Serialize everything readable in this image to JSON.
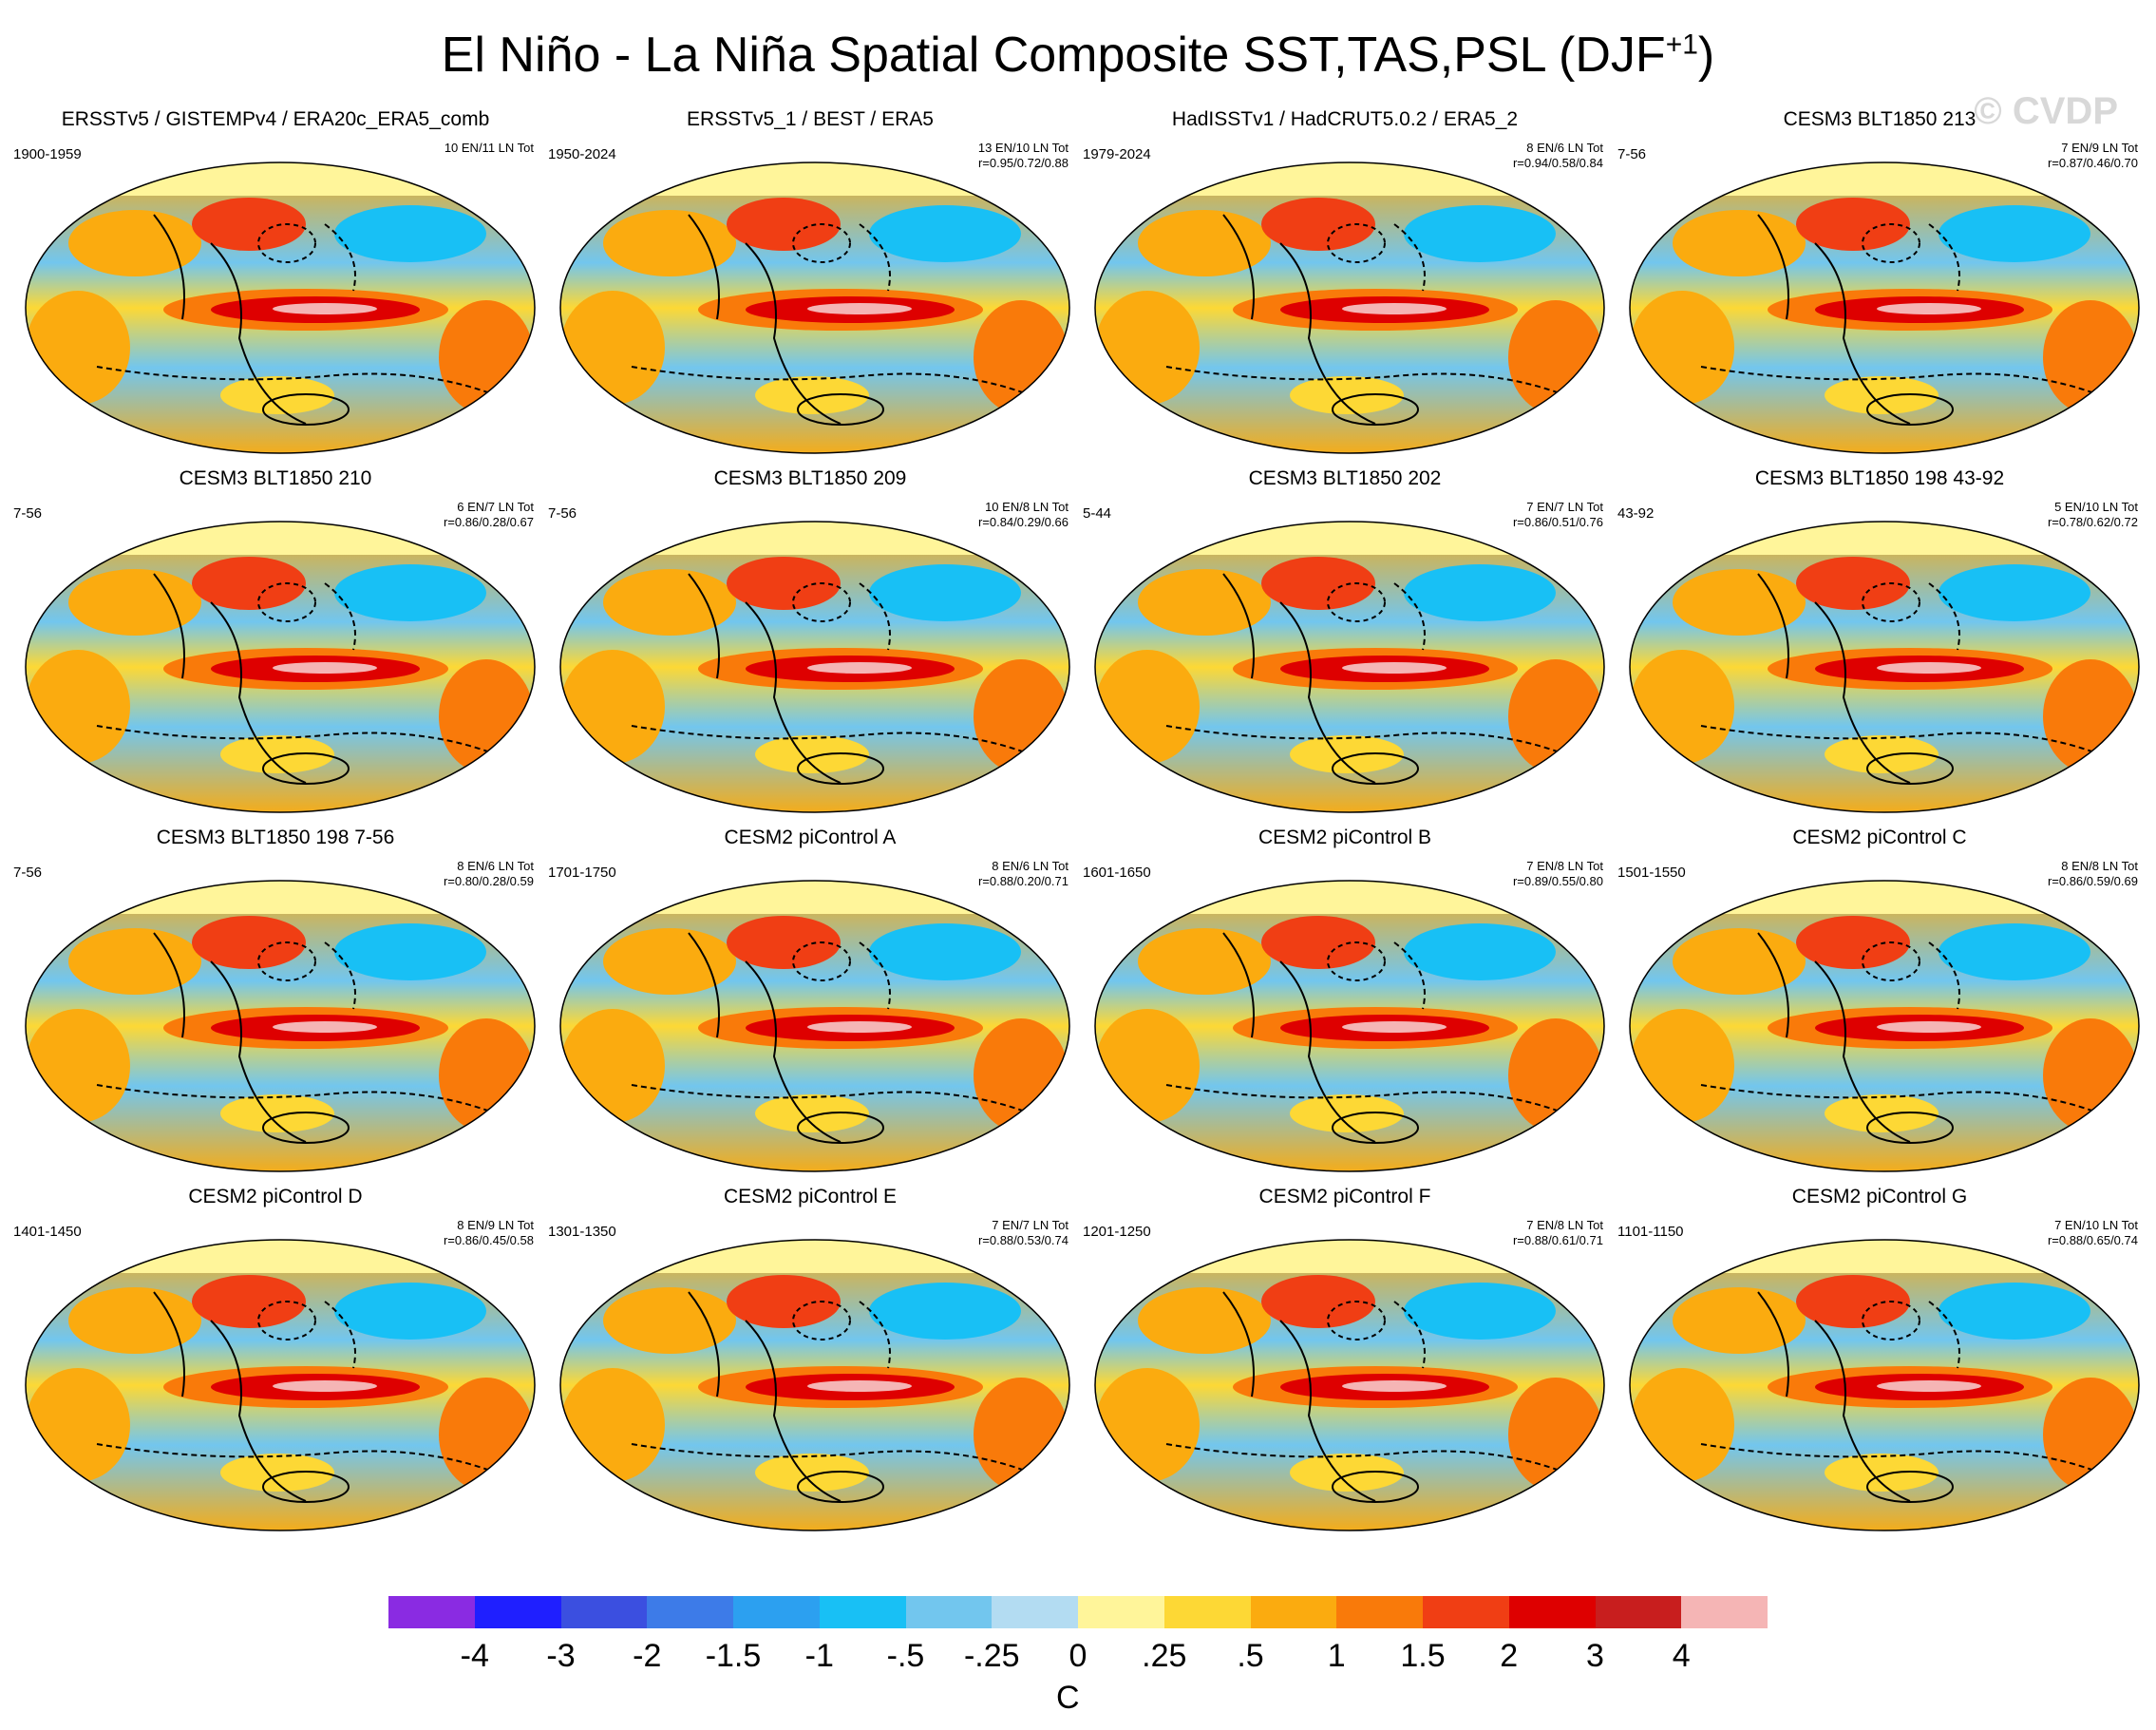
{
  "title": "El Niño - La Niña Spatial Composite SST,TAS,PSL (DJF",
  "title_sup": "+1",
  "title_end": ")",
  "watermark": "© CVDP",
  "panels": [
    {
      "title": "ERSSTv5 / GISTEMPv4 / ERA20c_ERA5_comb",
      "period": "1900-1959",
      "stats1": "10 EN/11 LN Tot",
      "stats2": ""
    },
    {
      "title": "ERSSTv5_1 / BEST / ERA5",
      "period": "1950-2024",
      "stats1": "13 EN/10 LN Tot",
      "stats2": "r=0.95/0.72/0.88"
    },
    {
      "title": "HadISSTv1 / HadCRUT5.0.2 / ERA5_2",
      "period": "1979-2024",
      "stats1": "8 EN/6 LN Tot",
      "stats2": "r=0.94/0.58/0.84"
    },
    {
      "title": "CESM3 BLT1850 213",
      "period": "7-56",
      "stats1": "7 EN/9 LN Tot",
      "stats2": "r=0.87/0.46/0.70"
    },
    {
      "title": "CESM3 BLT1850 210",
      "period": "7-56",
      "stats1": "6 EN/7 LN Tot",
      "stats2": "r=0.86/0.28/0.67"
    },
    {
      "title": "CESM3 BLT1850 209",
      "period": "7-56",
      "stats1": "10 EN/8 LN Tot",
      "stats2": "r=0.84/0.29/0.66"
    },
    {
      "title": "CESM3 BLT1850 202",
      "period": "5-44",
      "stats1": "7 EN/7 LN Tot",
      "stats2": "r=0.86/0.51/0.76"
    },
    {
      "title": "CESM3 BLT1850 198 43-92",
      "period": "43-92",
      "stats1": "5 EN/10 LN Tot",
      "stats2": "r=0.78/0.62/0.72"
    },
    {
      "title": "CESM3 BLT1850 198 7-56",
      "period": "7-56",
      "stats1": "8 EN/6 LN Tot",
      "stats2": "r=0.80/0.28/0.59"
    },
    {
      "title": "CESM2 piControl A",
      "period": "1701-1750",
      "stats1": "8 EN/6 LN Tot",
      "stats2": "r=0.88/0.20/0.71"
    },
    {
      "title": "CESM2 piControl B",
      "period": "1601-1650",
      "stats1": "7 EN/8 LN Tot",
      "stats2": "r=0.89/0.55/0.80"
    },
    {
      "title": "CESM2 piControl C",
      "period": "1501-1550",
      "stats1": "8 EN/8 LN Tot",
      "stats2": "r=0.86/0.59/0.69"
    },
    {
      "title": "CESM2 piControl D",
      "period": "1401-1450",
      "stats1": "8 EN/9 LN Tot",
      "stats2": "r=0.86/0.45/0.58"
    },
    {
      "title": "CESM2 piControl E",
      "period": "1301-1350",
      "stats1": "7 EN/7 LN Tot",
      "stats2": "r=0.88/0.53/0.74"
    },
    {
      "title": "CESM2 piControl F",
      "period": "1201-1250",
      "stats1": "7 EN/8 LN Tot",
      "stats2": "r=0.88/0.61/0.71"
    },
    {
      "title": "CESM2 piControl G",
      "period": "1101-1150",
      "stats1": "7 EN/10 LN Tot",
      "stats2": "r=0.88/0.65/0.74"
    }
  ],
  "colorbar": {
    "colors": [
      "#8a2be2",
      "#1f1fff",
      "#3b4fe0",
      "#3d7be8",
      "#2ca0f0",
      "#18c0f5",
      "#72c6ee",
      "#b3dcf2",
      "#fff59a",
      "#fdd835",
      "#fbab0f",
      "#f97a0a",
      "#f03e14",
      "#de0000",
      "#c81e1e",
      "#f5b5b5"
    ],
    "labels": [
      "-4",
      "-3",
      "-2",
      "-1.5",
      "-1",
      "-.5",
      "-.25",
      "0",
      ".25",
      ".5",
      "1",
      "1.5",
      "2",
      "3",
      "4"
    ],
    "unit": "C"
  }
}
